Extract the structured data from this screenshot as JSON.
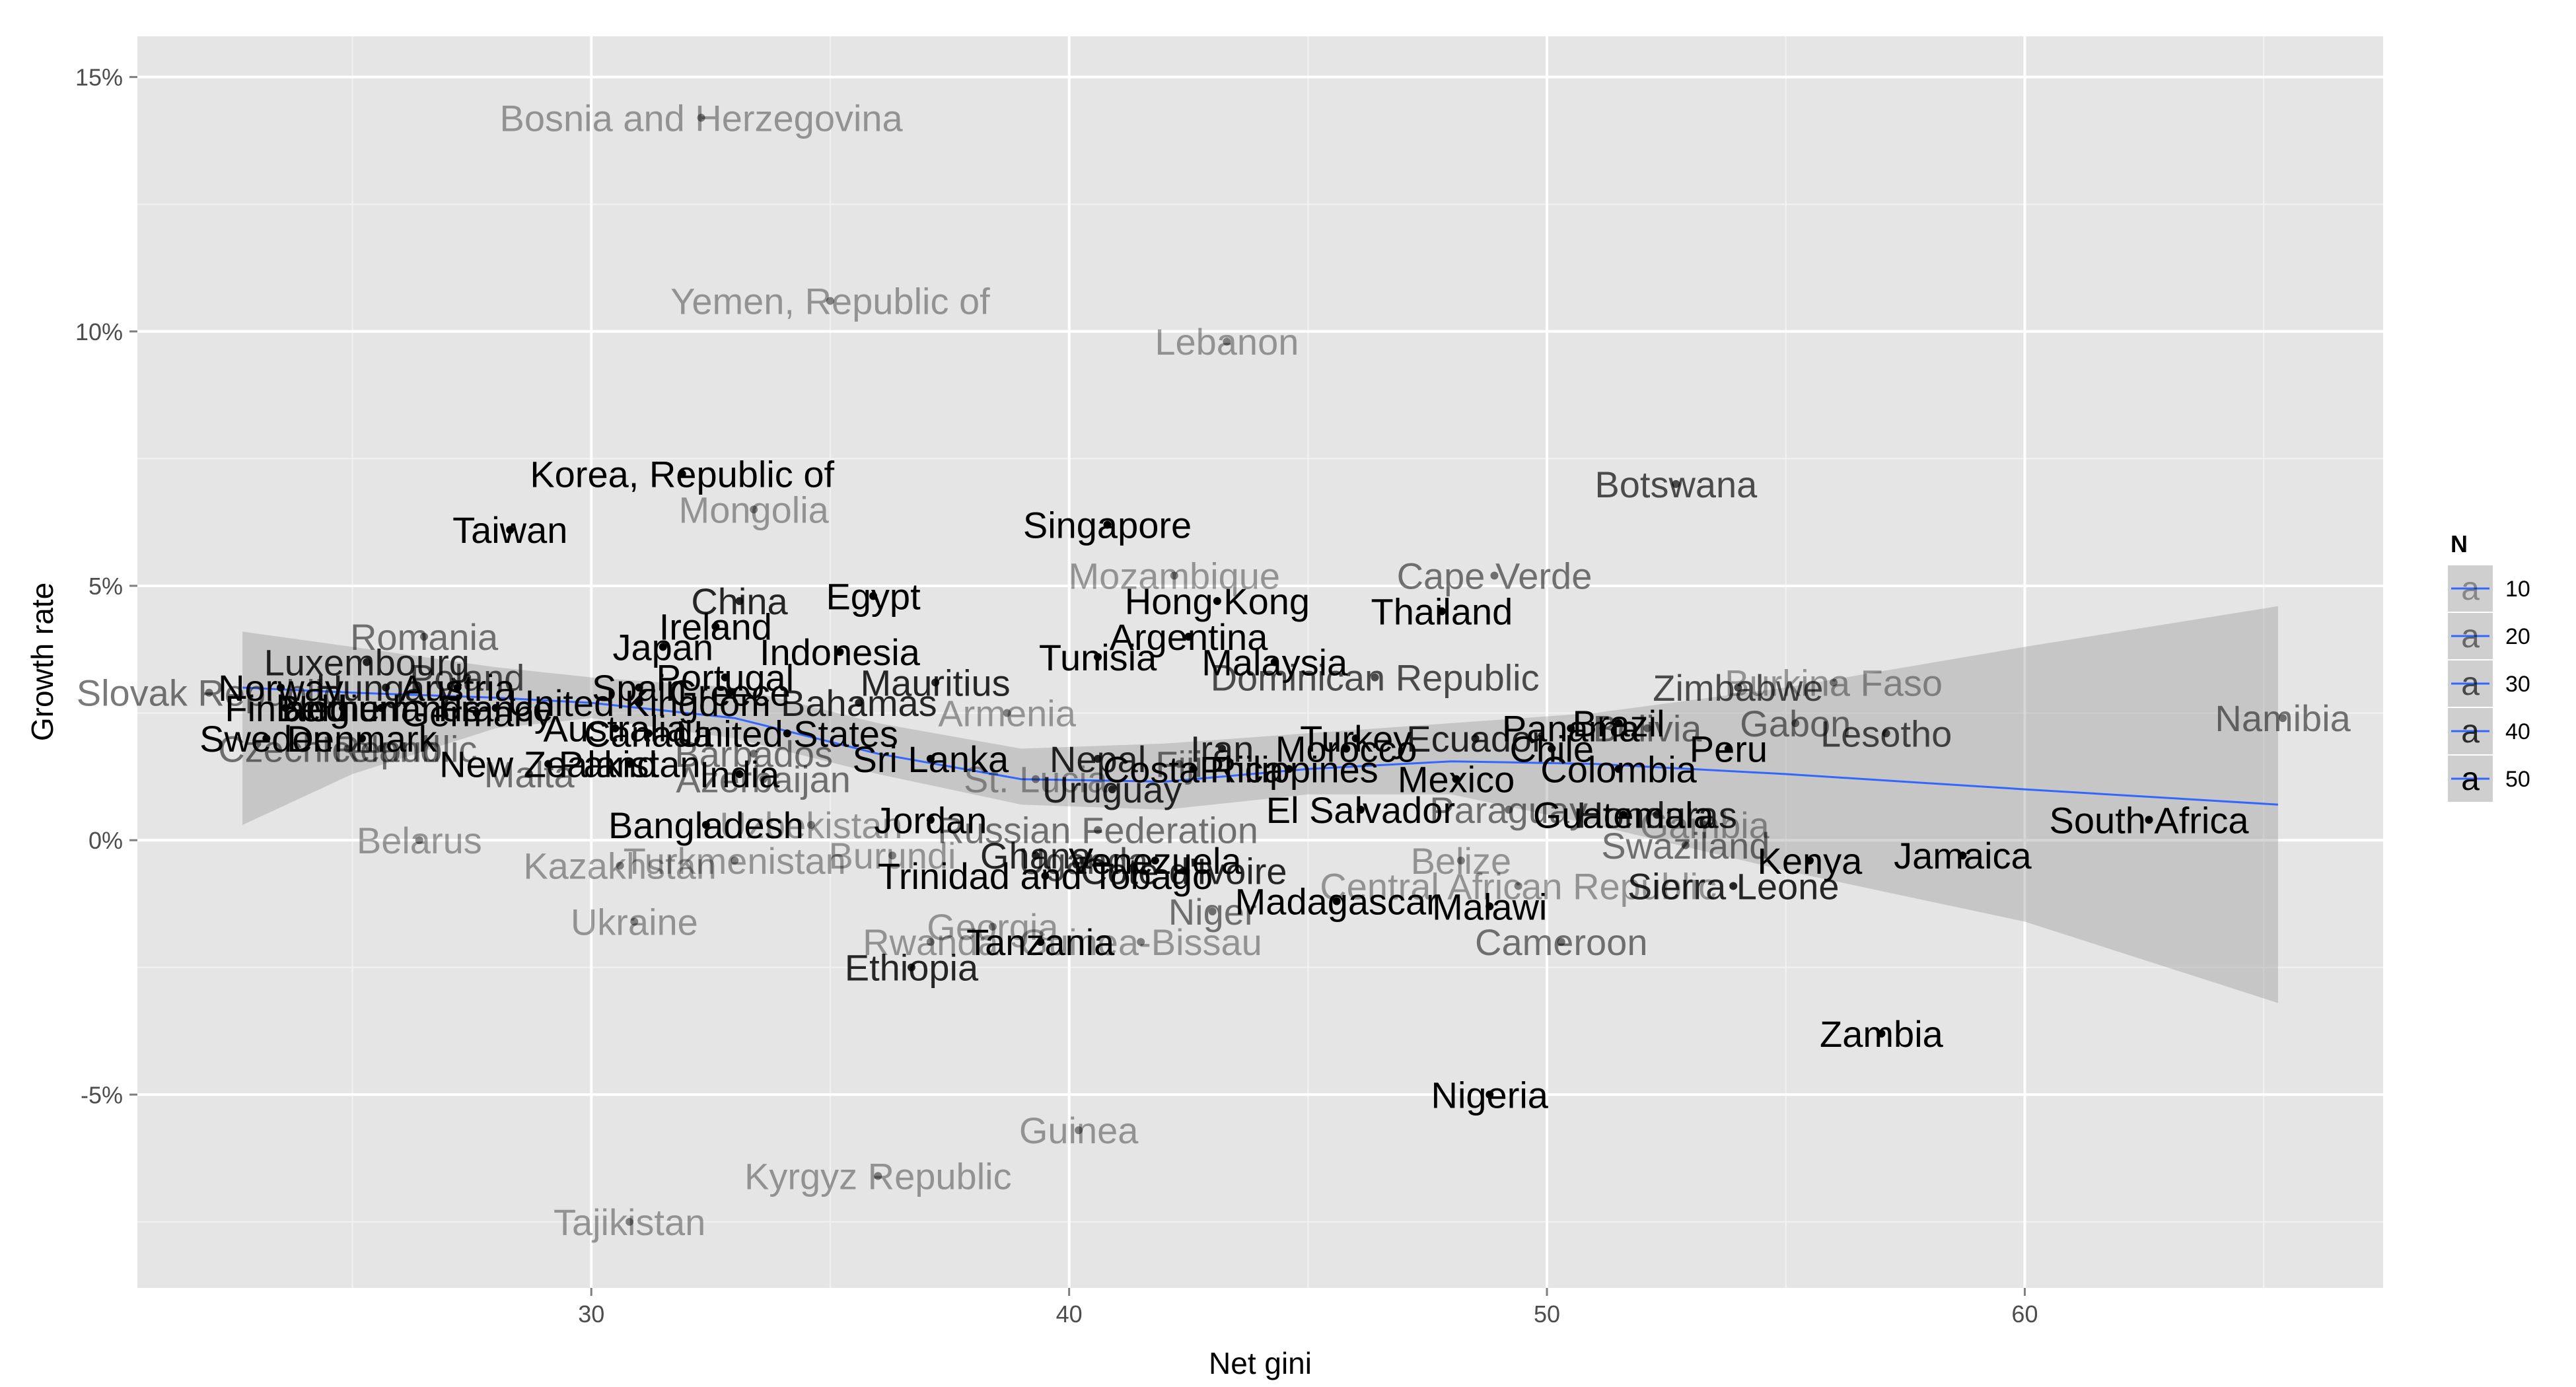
{
  "chart_data": {
    "type": "scatter",
    "xlabel": "Net gini",
    "ylabel": "Growth rate",
    "xlim": [
      20.5,
      67.5
    ],
    "ylim": [
      -8.8,
      15.8
    ],
    "x_ticks": [
      30,
      40,
      50,
      60
    ],
    "x_tick_labels": [
      "30",
      "40",
      "50",
      "60"
    ],
    "y_ticks": [
      -5,
      0,
      5,
      10,
      15
    ],
    "y_tick_labels": [
      "-5%",
      "0%",
      "5%",
      "10%",
      "15%"
    ],
    "grid": true,
    "legend": {
      "title": "N",
      "placement": "right",
      "entries": [
        {
          "label": "10",
          "alpha": 0.35
        },
        {
          "label": "20",
          "alpha": 0.5
        },
        {
          "label": "30",
          "alpha": 0.65
        },
        {
          "label": "40",
          "alpha": 0.8
        },
        {
          "label": "50",
          "alpha": 1.0
        }
      ]
    },
    "trend_line": {
      "color": "#3366ff",
      "points": [
        [
          22.7,
          3.0
        ],
        [
          25,
          2.9
        ],
        [
          28,
          2.8
        ],
        [
          30,
          2.7
        ],
        [
          33,
          2.4
        ],
        [
          36,
          1.7
        ],
        [
          39,
          1.2
        ],
        [
          42,
          1.15
        ],
        [
          45,
          1.4
        ],
        [
          48,
          1.55
        ],
        [
          51,
          1.5
        ],
        [
          55,
          1.3
        ],
        [
          60,
          1.0
        ],
        [
          65.3,
          0.7
        ]
      ],
      "band": [
        [
          22.7,
          0.3,
          4.1
        ],
        [
          25,
          1.3,
          3.8
        ],
        [
          28,
          2.2,
          3.4
        ],
        [
          30,
          2.4,
          3.2
        ],
        [
          33,
          2.0,
          3.0
        ],
        [
          36,
          1.3,
          2.3
        ],
        [
          39,
          0.7,
          1.8
        ],
        [
          42,
          0.6,
          1.9
        ],
        [
          45,
          0.9,
          2.1
        ],
        [
          48,
          0.9,
          2.3
        ],
        [
          51,
          0.3,
          2.5
        ],
        [
          55,
          -0.6,
          3.0
        ],
        [
          60,
          -1.6,
          3.8
        ],
        [
          65.3,
          -3.2,
          4.6
        ]
      ]
    },
    "points": [
      {
        "label": "Bosnia and Herzegovina",
        "x": 32.3,
        "y": 14.2,
        "n": 10
      },
      {
        "label": "Yemen, Republic of",
        "x": 35.0,
        "y": 10.6,
        "n": 10
      },
      {
        "label": "Lebanon",
        "x": 43.3,
        "y": 9.8,
        "n": 10
      },
      {
        "label": "Korea, Republic of",
        "x": 31.9,
        "y": 7.2,
        "n": 50
      },
      {
        "label": "Mongolia",
        "x": 33.4,
        "y": 6.5,
        "n": 10
      },
      {
        "label": "Botswana",
        "x": 52.7,
        "y": 7.0,
        "n": 30
      },
      {
        "label": "Taiwan",
        "x": 28.3,
        "y": 6.1,
        "n": 50
      },
      {
        "label": "Singapore",
        "x": 40.8,
        "y": 6.2,
        "n": 50
      },
      {
        "label": "Mozambique",
        "x": 42.2,
        "y": 5.2,
        "n": 10
      },
      {
        "label": "Cape Verde",
        "x": 48.9,
        "y": 5.2,
        "n": 20
      },
      {
        "label": "China",
        "x": 33.1,
        "y": 4.7,
        "n": 40
      },
      {
        "label": "Egypt",
        "x": 35.9,
        "y": 4.8,
        "n": 50
      },
      {
        "label": "Hong Kong",
        "x": 43.1,
        "y": 4.7,
        "n": 50
      },
      {
        "label": "Thailand",
        "x": 47.8,
        "y": 4.5,
        "n": 50
      },
      {
        "label": "Ireland",
        "x": 32.6,
        "y": 4.2,
        "n": 50
      },
      {
        "label": "Romania",
        "x": 26.5,
        "y": 4.0,
        "n": 20
      },
      {
        "label": "Argentina",
        "x": 42.5,
        "y": 4.0,
        "n": 50
      },
      {
        "label": "Japan",
        "x": 31.5,
        "y": 3.8,
        "n": 50
      },
      {
        "label": "Indonesia",
        "x": 35.2,
        "y": 3.7,
        "n": 50
      },
      {
        "label": "Tunisia",
        "x": 40.6,
        "y": 3.6,
        "n": 50
      },
      {
        "label": "Malaysia",
        "x": 44.3,
        "y": 3.5,
        "n": 50
      },
      {
        "label": "Luxembourg",
        "x": 25.3,
        "y": 3.5,
        "n": 40
      },
      {
        "label": "Dominican Republic",
        "x": 46.4,
        "y": 3.2,
        "n": 30
      },
      {
        "label": "Mauritius",
        "x": 37.2,
        "y": 3.1,
        "n": 40
      },
      {
        "label": "Zimbabwe",
        "x": 54.0,
        "y": 3.0,
        "n": 30
      },
      {
        "label": "Burkina Faso",
        "x": 56.0,
        "y": 3.1,
        "n": 10
      },
      {
        "label": "Norway",
        "x": 23.5,
        "y": 3.0,
        "n": 50
      },
      {
        "label": "Hungary",
        "x": 25.7,
        "y": 3.0,
        "n": 40
      },
      {
        "label": "Austria",
        "x": 27.2,
        "y": 3.0,
        "n": 50
      },
      {
        "label": "Poland",
        "x": 27.4,
        "y": 3.2,
        "n": 30
      },
      {
        "label": "Spain",
        "x": 31.0,
        "y": 3.0,
        "n": 50
      },
      {
        "label": "Portugal",
        "x": 32.8,
        "y": 3.2,
        "n": 50
      },
      {
        "label": "Greece",
        "x": 32.9,
        "y": 2.9,
        "n": 50
      },
      {
        "label": "Finland",
        "x": 23.6,
        "y": 2.6,
        "n": 50
      },
      {
        "label": "Netherlands",
        "x": 25.6,
        "y": 2.6,
        "n": 50
      },
      {
        "label": "France",
        "x": 28.0,
        "y": 2.6,
        "n": 50
      },
      {
        "label": "Belgium",
        "x": 24.8,
        "y": 2.6,
        "n": 50
      },
      {
        "label": "Germany",
        "x": 27.6,
        "y": 2.5,
        "n": 50
      },
      {
        "label": "United Kingdom",
        "x": 31.0,
        "y": 2.7,
        "n": 50
      },
      {
        "label": "Bahamas",
        "x": 35.6,
        "y": 2.7,
        "n": 40
      },
      {
        "label": "Armenia",
        "x": 38.7,
        "y": 2.5,
        "n": 10
      },
      {
        "label": "Gabon",
        "x": 55.2,
        "y": 2.3,
        "n": 20
      },
      {
        "label": "Lesotho",
        "x": 57.1,
        "y": 2.1,
        "n": 30
      },
      {
        "label": "Namibia",
        "x": 65.4,
        "y": 2.4,
        "n": 20
      },
      {
        "label": "Slovak Republic",
        "x": 22.0,
        "y": 2.9,
        "n": 20
      },
      {
        "label": "Sweden",
        "x": 23.2,
        "y": 2.0,
        "n": 50
      },
      {
        "label": "Denmark",
        "x": 25.2,
        "y": 2.0,
        "n": 50
      },
      {
        "label": "Czech Republic",
        "x": 24.9,
        "y": 1.8,
        "n": 20
      },
      {
        "label": "Iceland",
        "x": 25.6,
        "y": 1.8,
        "n": 20
      },
      {
        "label": "Australia",
        "x": 30.5,
        "y": 2.2,
        "n": 50
      },
      {
        "label": "Canada",
        "x": 31.2,
        "y": 2.1,
        "n": 50
      },
      {
        "label": "United States",
        "x": 34.1,
        "y": 2.1,
        "n": 50
      },
      {
        "label": "Barbados",
        "x": 33.4,
        "y": 1.7,
        "n": 20
      },
      {
        "label": "Sri Lanka",
        "x": 37.1,
        "y": 1.6,
        "n": 50
      },
      {
        "label": "Nepal",
        "x": 40.6,
        "y": 1.6,
        "n": 40
      },
      {
        "label": "Iran",
        "x": 43.2,
        "y": 1.8,
        "n": 40
      },
      {
        "label": "Morocco",
        "x": 45.8,
        "y": 1.8,
        "n": 50
      },
      {
        "label": "Turkey",
        "x": 46.0,
        "y": 2.0,
        "n": 50
      },
      {
        "label": "Ecuador",
        "x": 48.5,
        "y": 2.0,
        "n": 40
      },
      {
        "label": "Panama",
        "x": 50.5,
        "y": 2.2,
        "n": 50
      },
      {
        "label": "Brazil",
        "x": 51.5,
        "y": 2.3,
        "n": 50
      },
      {
        "label": "Bolivia",
        "x": 52.1,
        "y": 2.2,
        "n": 20
      },
      {
        "label": "Chile",
        "x": 50.1,
        "y": 1.8,
        "n": 50
      },
      {
        "label": "Peru",
        "x": 53.8,
        "y": 1.8,
        "n": 50
      },
      {
        "label": "New Zealand",
        "x": 29.1,
        "y": 1.5,
        "n": 50
      },
      {
        "label": "Pakistan",
        "x": 30.8,
        "y": 1.5,
        "n": 50
      },
      {
        "label": "Malta",
        "x": 28.7,
        "y": 1.3,
        "n": 20
      },
      {
        "label": "India",
        "x": 33.1,
        "y": 1.3,
        "n": 50
      },
      {
        "label": "Azerbaijan",
        "x": 33.6,
        "y": 1.2,
        "n": 20
      },
      {
        "label": "St. Lucia",
        "x": 39.3,
        "y": 1.2,
        "n": 10
      },
      {
        "label": "Fiji",
        "x": 42.3,
        "y": 1.5,
        "n": 20
      },
      {
        "label": "Costa Rica",
        "x": 42.6,
        "y": 1.4,
        "n": 50
      },
      {
        "label": "Philippines",
        "x": 44.6,
        "y": 1.4,
        "n": 50
      },
      {
        "label": "Mexico",
        "x": 48.1,
        "y": 1.2,
        "n": 50
      },
      {
        "label": "Colombia",
        "x": 51.5,
        "y": 1.4,
        "n": 50
      },
      {
        "label": "Uruguay",
        "x": 40.9,
        "y": 1.0,
        "n": 40
      },
      {
        "label": "El Salvador",
        "x": 46.1,
        "y": 0.6,
        "n": 50
      },
      {
        "label": "Paraguay",
        "x": 49.2,
        "y": 0.6,
        "n": 20
      },
      {
        "label": "Guatemala",
        "x": 51.6,
        "y": 0.5,
        "n": 50
      },
      {
        "label": "Honduras",
        "x": 52.3,
        "y": 0.5,
        "n": 40
      },
      {
        "label": "Gambia",
        "x": 53.3,
        "y": 0.3,
        "n": 10
      },
      {
        "label": "South Africa",
        "x": 62.6,
        "y": 0.4,
        "n": 50
      },
      {
        "label": "Belarus",
        "x": 26.4,
        "y": 0.0,
        "n": 10
      },
      {
        "label": "Bangladesh",
        "x": 32.4,
        "y": 0.3,
        "n": 50
      },
      {
        "label": "Uzbekistan",
        "x": 34.6,
        "y": 0.3,
        "n": 10
      },
      {
        "label": "Jordan",
        "x": 37.1,
        "y": 0.4,
        "n": 50
      },
      {
        "label": "Russian Federation",
        "x": 40.6,
        "y": 0.2,
        "n": 20
      },
      {
        "label": "Swaziland",
        "x": 52.9,
        "y": -0.1,
        "n": 20
      },
      {
        "label": "Turkmenistan",
        "x": 33.0,
        "y": -0.4,
        "n": 10
      },
      {
        "label": "Kazakhstan",
        "x": 30.6,
        "y": -0.5,
        "n": 10
      },
      {
        "label": "Burundi",
        "x": 36.3,
        "y": -0.3,
        "n": 10
      },
      {
        "label": "Ghana",
        "x": 39.3,
        "y": -0.3,
        "n": 40
      },
      {
        "label": "Uganda",
        "x": 40.3,
        "y": -0.4,
        "n": 30
      },
      {
        "label": "Venezuela",
        "x": 41.8,
        "y": -0.4,
        "n": 50
      },
      {
        "label": "Cote d'Ivoire",
        "x": 42.4,
        "y": -0.6,
        "n": 40
      },
      {
        "label": "Belize",
        "x": 48.2,
        "y": -0.4,
        "n": 10
      },
      {
        "label": "Kenya",
        "x": 55.5,
        "y": -0.4,
        "n": 50
      },
      {
        "label": "Jamaica",
        "x": 58.7,
        "y": -0.3,
        "n": 50
      },
      {
        "label": "Trinidad and Tobago",
        "x": 39.5,
        "y": -0.7,
        "n": 50
      },
      {
        "label": "Central African Republic",
        "x": 49.4,
        "y": -0.9,
        "n": 10
      },
      {
        "label": "Sierra Leone",
        "x": 53.9,
        "y": -0.9,
        "n": 40
      },
      {
        "label": "Niger",
        "x": 43.0,
        "y": -1.4,
        "n": 20
      },
      {
        "label": "Madagascar",
        "x": 45.6,
        "y": -1.2,
        "n": 50
      },
      {
        "label": "Malawi",
        "x": 48.8,
        "y": -1.3,
        "n": 50
      },
      {
        "label": "Ukraine",
        "x": 30.9,
        "y": -1.6,
        "n": 10
      },
      {
        "label": "Georgia",
        "x": 38.4,
        "y": -1.7,
        "n": 10
      },
      {
        "label": "Rwanda",
        "x": 37.1,
        "y": -2.0,
        "n": 10
      },
      {
        "label": "Guinea-Bissau",
        "x": 41.5,
        "y": -2.0,
        "n": 10
      },
      {
        "label": "Tanzania",
        "x": 39.4,
        "y": -2.0,
        "n": 50
      },
      {
        "label": "Cameroon",
        "x": 50.3,
        "y": -2.0,
        "n": 20
      },
      {
        "label": "Ethiopia",
        "x": 36.7,
        "y": -2.5,
        "n": 40
      },
      {
        "label": "Zambia",
        "x": 57.0,
        "y": -3.8,
        "n": 50
      },
      {
        "label": "Nigeria",
        "x": 48.8,
        "y": -5.0,
        "n": 50
      },
      {
        "label": "Guinea",
        "x": 40.2,
        "y": -5.7,
        "n": 10
      },
      {
        "label": "Kyrgyz Republic",
        "x": 36.0,
        "y": -6.6,
        "n": 10
      },
      {
        "label": "Tajikistan",
        "x": 30.8,
        "y": -7.5,
        "n": 10
      }
    ]
  }
}
